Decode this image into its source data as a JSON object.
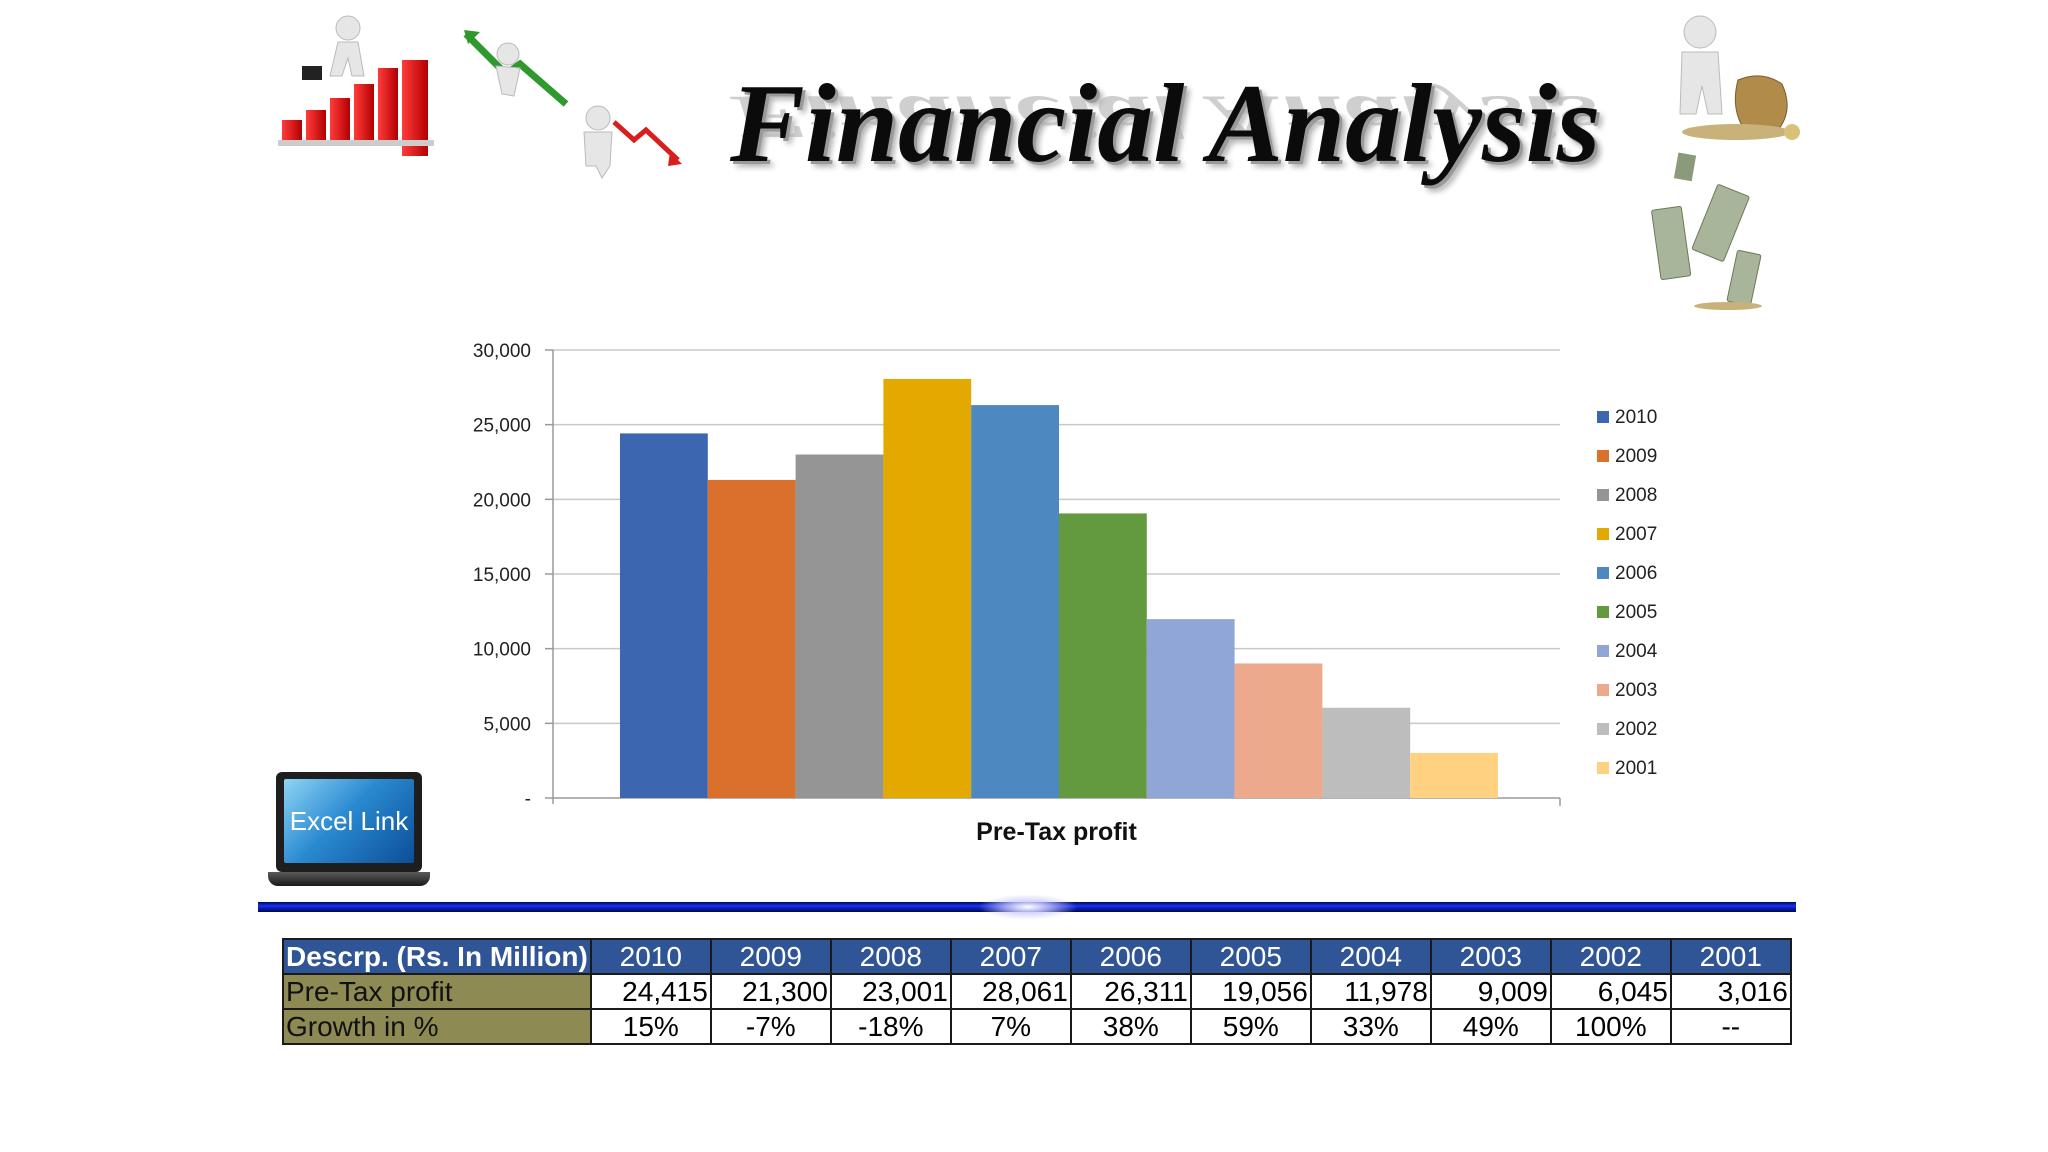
{
  "title": "Financial Analysis",
  "excel_link_label": "Excel Link",
  "chart_data": {
    "type": "bar",
    "xlabel": "Pre-Tax profit",
    "ylabel": "",
    "ylim": [
      0,
      30000
    ],
    "yticks": [
      0,
      5000,
      10000,
      15000,
      20000,
      25000,
      30000
    ],
    "ytick_labels": [
      "-",
      "5,000",
      "10,000",
      "15,000",
      "20,000",
      "25,000",
      "30,000"
    ],
    "grid": true,
    "legend_position": "right",
    "series": [
      {
        "name": "2010",
        "value": 24415,
        "color": "#3d66b0"
      },
      {
        "name": "2009",
        "value": 21300,
        "color": "#d9702c"
      },
      {
        "name": "2008",
        "value": 23001,
        "color": "#959595"
      },
      {
        "name": "2007",
        "value": 28061,
        "color": "#e4a900"
      },
      {
        "name": "2006",
        "value": 26311,
        "color": "#4e88c0"
      },
      {
        "name": "2005",
        "value": 19056,
        "color": "#63993f"
      },
      {
        "name": "2004",
        "value": 11978,
        "color": "#8fa6d6"
      },
      {
        "name": "2003",
        "value": 9009,
        "color": "#eda98c"
      },
      {
        "name": "2002",
        "value": 6045,
        "color": "#bdbdbd"
      },
      {
        "name": "2001",
        "value": 3016,
        "color": "#ffd180"
      }
    ]
  },
  "table": {
    "header_label": "Descrp. (Rs. In Million)",
    "years": [
      "2010",
      "2009",
      "2008",
      "2007",
      "2006",
      "2005",
      "2004",
      "2003",
      "2002",
      "2001"
    ],
    "rows": [
      {
        "label": "Pre-Tax profit",
        "cells": [
          "24,415",
          "21,300",
          "23,001",
          "28,061",
          "26,311",
          "19,056",
          "11,978",
          "9,009",
          "6,045",
          "3,016"
        ]
      },
      {
        "label": "Growth in %",
        "cells": [
          "15%",
          "-7%",
          "-18%",
          "7%",
          "38%",
          "59%",
          "33%",
          "49%",
          "100%",
          "--"
        ]
      }
    ]
  },
  "colors": {
    "table_header": "#2f5597",
    "table_label": "#8e8a54",
    "divider": "#1730ff"
  },
  "icons": [
    "growth-chart-person-icon",
    "falling-arrow-person-icon",
    "decline-chart-person-icon",
    "money-bag-person-icon",
    "falling-money-icon",
    "laptop-icon"
  ]
}
